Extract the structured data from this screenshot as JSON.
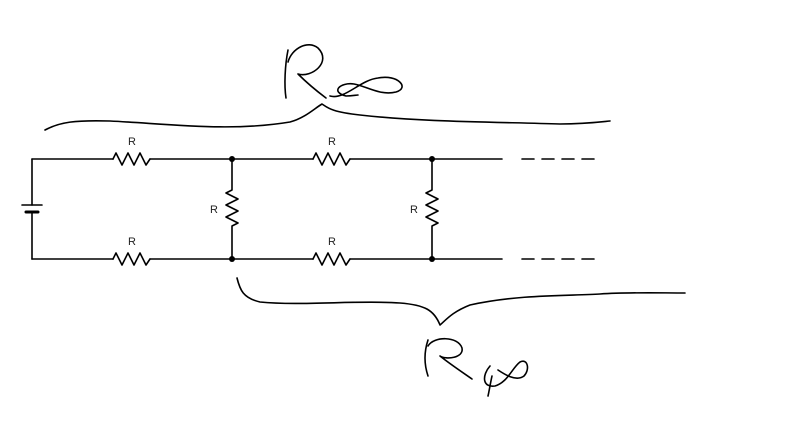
{
  "diagram": {
    "type": "infinite resistor ladder circuit",
    "resistor_label": "R",
    "resistors": [
      {
        "position": "top-1",
        "label": "R"
      },
      {
        "position": "top-2",
        "label": "R"
      },
      {
        "position": "rung-1",
        "label": "R"
      },
      {
        "position": "rung-2",
        "label": "R"
      },
      {
        "position": "bottom-1",
        "label": "R"
      },
      {
        "position": "bottom-2",
        "label": "R"
      }
    ],
    "annotations": [
      {
        "id": "top",
        "text": "R∞",
        "style": "handwritten"
      },
      {
        "id": "bottom",
        "text": "R∞",
        "style": "handwritten"
      }
    ],
    "continuation": "dashed lines",
    "source": "battery"
  },
  "colors": {
    "wire": "#000000",
    "label": "#222222",
    "background": "#ffffff"
  }
}
